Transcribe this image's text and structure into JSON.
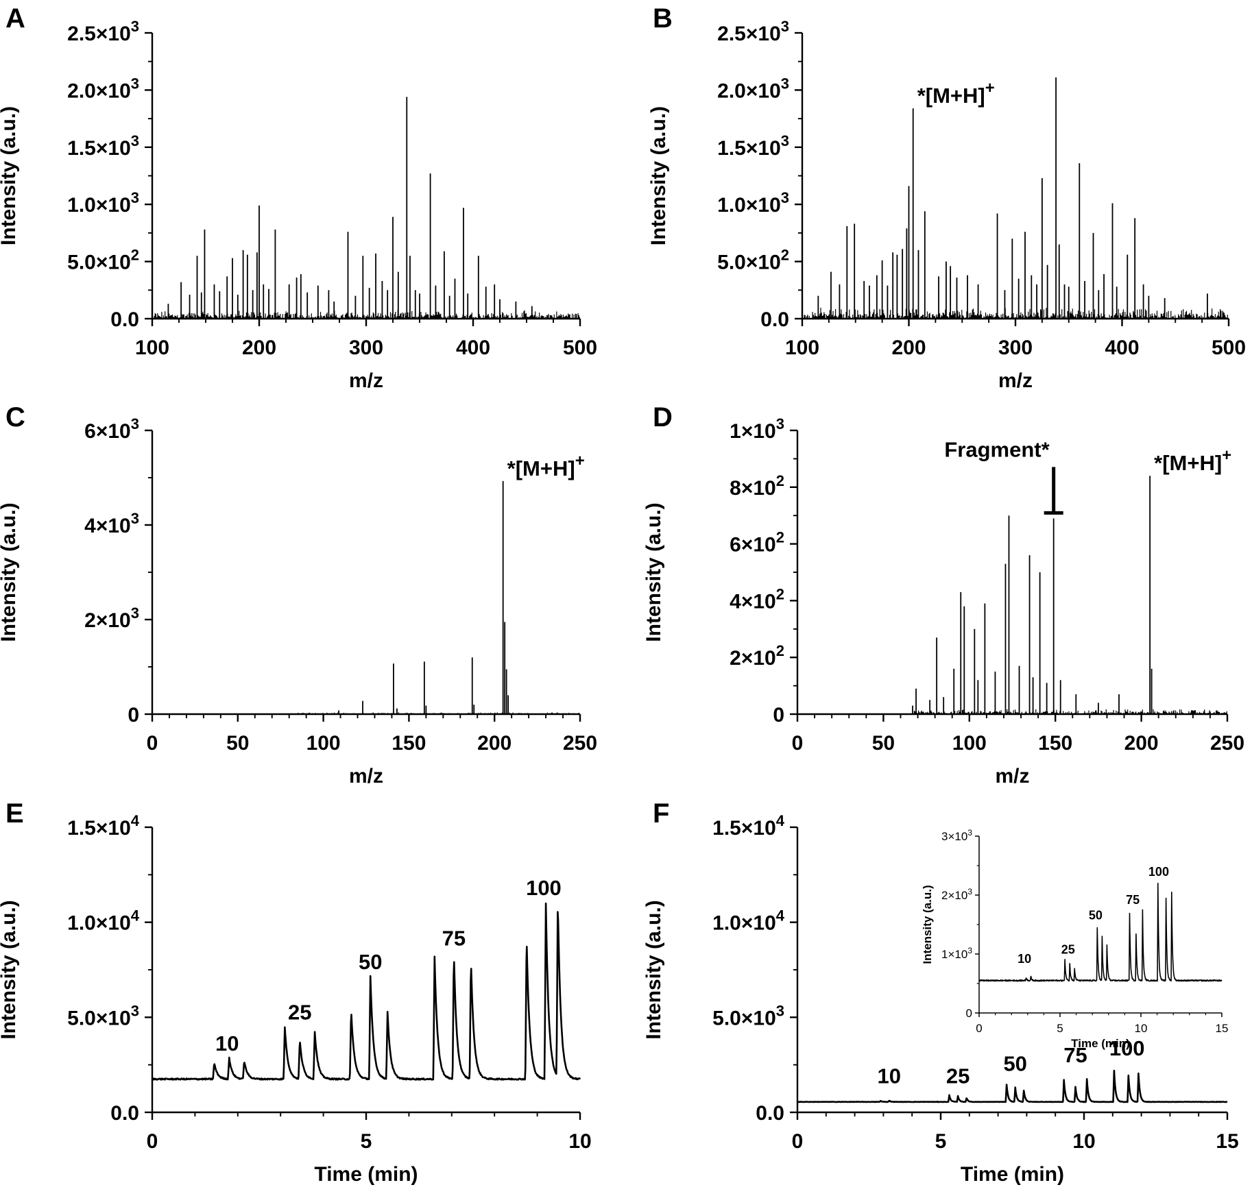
{
  "chart_data": [
    {
      "panel": "A",
      "type": "line",
      "xlabel": "m/z",
      "ylabel": "Intensity (a.u.)",
      "xlim": [
        100,
        500
      ],
      "ylim": [
        0,
        2500
      ],
      "xticks": [
        100,
        200,
        300,
        400,
        500
      ],
      "xtick_labels": [
        "100",
        "200",
        "300",
        "400",
        "500"
      ],
      "yticks": [
        0,
        500,
        1000,
        1500,
        2000,
        2500
      ],
      "ytick_labels": [
        {
          "mant": "0.0",
          "exp": ""
        },
        {
          "mant": "5.0×10",
          "exp": "2"
        },
        {
          "mant": "1.0×10",
          "exp": "3"
        },
        {
          "mant": "1.5×10",
          "exp": "3"
        },
        {
          "mant": "2.0×10",
          "exp": "3"
        },
        {
          "mant": "2.5×10",
          "exp": "3"
        }
      ],
      "peaks": [
        [
          115,
          130
        ],
        [
          127,
          320
        ],
        [
          135,
          210
        ],
        [
          142,
          550
        ],
        [
          146,
          230
        ],
        [
          149,
          780
        ],
        [
          158,
          300
        ],
        [
          163,
          240
        ],
        [
          170,
          370
        ],
        [
          175,
          530
        ],
        [
          180,
          210
        ],
        [
          185,
          600
        ],
        [
          189,
          560
        ],
        [
          194,
          250
        ],
        [
          198,
          580
        ],
        [
          200,
          990
        ],
        [
          204,
          300
        ],
        [
          209,
          260
        ],
        [
          215,
          780
        ],
        [
          228,
          300
        ],
        [
          235,
          360
        ],
        [
          239,
          390
        ],
        [
          245,
          230
        ],
        [
          255,
          290
        ],
        [
          265,
          250
        ],
        [
          270,
          150
        ],
        [
          283,
          760
        ],
        [
          290,
          200
        ],
        [
          297,
          550
        ],
        [
          303,
          270
        ],
        [
          309,
          570
        ],
        [
          315,
          330
        ],
        [
          320,
          250
        ],
        [
          325,
          890
        ],
        [
          330,
          410
        ],
        [
          338,
          1940
        ],
        [
          341,
          550
        ],
        [
          346,
          250
        ],
        [
          350,
          220
        ],
        [
          360,
          1270
        ],
        [
          365,
          290
        ],
        [
          373,
          590
        ],
        [
          378,
          200
        ],
        [
          383,
          350
        ],
        [
          391,
          970
        ],
        [
          395,
          220
        ],
        [
          405,
          550
        ],
        [
          412,
          280
        ],
        [
          420,
          300
        ],
        [
          425,
          170
        ],
        [
          440,
          150
        ],
        [
          455,
          110
        ]
      ],
      "noise": 60,
      "annotations": []
    },
    {
      "panel": "B",
      "type": "line",
      "xlabel": "m/z",
      "ylabel": "Intensity (a.u.)",
      "xlim": [
        100,
        500
      ],
      "ylim": [
        0,
        2500
      ],
      "xticks": [
        100,
        200,
        300,
        400,
        500
      ],
      "xtick_labels": [
        "100",
        "200",
        "300",
        "400",
        "500"
      ],
      "yticks": [
        0,
        500,
        1000,
        1500,
        2000,
        2500
      ],
      "ytick_labels": [
        {
          "mant": "0.0",
          "exp": ""
        },
        {
          "mant": "5.0×10",
          "exp": "2"
        },
        {
          "mant": "1.0×10",
          "exp": "3"
        },
        {
          "mant": "1.5×10",
          "exp": "3"
        },
        {
          "mant": "2.0×10",
          "exp": "3"
        },
        {
          "mant": "2.5×10",
          "exp": "3"
        }
      ],
      "peaks": [
        [
          115,
          200
        ],
        [
          127,
          410
        ],
        [
          135,
          300
        ],
        [
          142,
          810
        ],
        [
          149,
          830
        ],
        [
          158,
          330
        ],
        [
          163,
          290
        ],
        [
          170,
          380
        ],
        [
          175,
          510
        ],
        [
          180,
          290
        ],
        [
          185,
          580
        ],
        [
          189,
          560
        ],
        [
          194,
          610
        ],
        [
          198,
          790
        ],
        [
          200,
          1160
        ],
        [
          204,
          1840
        ],
        [
          209,
          600
        ],
        [
          215,
          940
        ],
        [
          228,
          370
        ],
        [
          235,
          500
        ],
        [
          239,
          460
        ],
        [
          245,
          360
        ],
        [
          255,
          380
        ],
        [
          265,
          300
        ],
        [
          283,
          920
        ],
        [
          290,
          250
        ],
        [
          297,
          700
        ],
        [
          303,
          350
        ],
        [
          309,
          760
        ],
        [
          315,
          380
        ],
        [
          320,
          300
        ],
        [
          325,
          1230
        ],
        [
          330,
          470
        ],
        [
          338,
          2110
        ],
        [
          341,
          650
        ],
        [
          346,
          300
        ],
        [
          350,
          280
        ],
        [
          360,
          1360
        ],
        [
          365,
          330
        ],
        [
          373,
          750
        ],
        [
          378,
          250
        ],
        [
          383,
          390
        ],
        [
          391,
          1010
        ],
        [
          395,
          280
        ],
        [
          405,
          560
        ],
        [
          412,
          880
        ],
        [
          420,
          300
        ],
        [
          425,
          200
        ],
        [
          440,
          180
        ],
        [
          480,
          220
        ]
      ],
      "noise": 80,
      "annotations": [
        {
          "text": "*[M+H]",
          "sup": "+",
          "x": 204,
          "y": 1840
        }
      ]
    },
    {
      "panel": "C",
      "type": "line",
      "xlabel": "m/z",
      "ylabel": "Intensity (a.u.)",
      "xlim": [
        0,
        250
      ],
      "ylim": [
        0,
        6000
      ],
      "xticks": [
        0,
        50,
        100,
        150,
        200,
        250
      ],
      "xtick_labels": [
        "0",
        "50",
        "100",
        "150",
        "200",
        "250"
      ],
      "yticks": [
        0,
        2000,
        4000,
        6000
      ],
      "ytick_labels": [
        {
          "mant": "0",
          "exp": ""
        },
        {
          "mant": "2×10",
          "exp": "3"
        },
        {
          "mant": "4×10",
          "exp": "3"
        },
        {
          "mant": "6×10",
          "exp": "3"
        }
      ],
      "peaks": [
        [
          109,
          80
        ],
        [
          123,
          280
        ],
        [
          141,
          1070
        ],
        [
          143,
          120
        ],
        [
          159,
          1110
        ],
        [
          160,
          180
        ],
        [
          187,
          1200
        ],
        [
          188,
          200
        ],
        [
          205,
          4930
        ],
        [
          206,
          1950
        ],
        [
          207,
          950
        ],
        [
          208,
          400
        ]
      ],
      "noise": 30,
      "annotations": [
        {
          "text": "*[M+H]",
          "sup": "+",
          "x": 205,
          "y": 4930
        }
      ]
    },
    {
      "panel": "D",
      "type": "line",
      "xlabel": "m/z",
      "ylabel": "Intensity (a.u.)",
      "xlim": [
        0,
        250
      ],
      "ylim": [
        0,
        1000
      ],
      "xticks": [
        0,
        50,
        100,
        150,
        200,
        250
      ],
      "xtick_labels": [
        "0",
        "50",
        "100",
        "150",
        "200",
        "250"
      ],
      "yticks": [
        0,
        200,
        400,
        600,
        800,
        1000
      ],
      "ytick_labels": [
        {
          "mant": "0",
          "exp": ""
        },
        {
          "mant": "2×10",
          "exp": "2"
        },
        {
          "mant": "4×10",
          "exp": "2"
        },
        {
          "mant": "6×10",
          "exp": "2"
        },
        {
          "mant": "8×10",
          "exp": "2"
        },
        {
          "mant": "1×10",
          "exp": "3"
        }
      ],
      "peaks": [
        [
          67,
          30
        ],
        [
          69,
          90
        ],
        [
          77,
          50
        ],
        [
          81,
          270
        ],
        [
          85,
          60
        ],
        [
          91,
          160
        ],
        [
          95,
          430
        ],
        [
          97,
          380
        ],
        [
          103,
          300
        ],
        [
          105,
          120
        ],
        [
          109,
          390
        ],
        [
          115,
          150
        ],
        [
          121,
          530
        ],
        [
          123,
          700
        ],
        [
          129,
          170
        ],
        [
          135,
          560
        ],
        [
          137,
          130
        ],
        [
          141,
          500
        ],
        [
          145,
          110
        ],
        [
          149,
          690
        ],
        [
          153,
          120
        ],
        [
          162,
          70
        ],
        [
          175,
          40
        ],
        [
          187,
          70
        ],
        [
          205,
          840
        ],
        [
          206,
          160
        ]
      ],
      "noise": 15,
      "annotations": [
        {
          "text": "*[M+H]",
          "sup": "+",
          "x": 205,
          "y": 840
        },
        {
          "text": "Fragment*",
          "sup": "",
          "x": 149,
          "y": 690
        }
      ]
    },
    {
      "panel": "E",
      "type": "line",
      "xlabel": "Time (min)",
      "ylabel": "Intensity (a.u.)",
      "xlim": [
        0,
        10
      ],
      "ylim": [
        0,
        15000
      ],
      "xticks": [
        0,
        5,
        10
      ],
      "xtick_labels": [
        "0",
        "5",
        "10"
      ],
      "yticks": [
        0,
        5000,
        10000,
        15000
      ],
      "ytick_labels": [
        {
          "mant": "0.0",
          "exp": ""
        },
        {
          "mant": "5.0×10",
          "exp": "3"
        },
        {
          "mant": "1.0×10",
          "exp": "4"
        },
        {
          "mant": "1.5×10",
          "exp": "4"
        }
      ],
      "baseline": 1750,
      "peaks": [
        [
          1.45,
          2600
        ],
        [
          1.8,
          2850
        ],
        [
          2.15,
          2700
        ],
        [
          3.1,
          4500
        ],
        [
          3.45,
          3800
        ],
        [
          3.8,
          4250
        ],
        [
          4.65,
          5400
        ],
        [
          5.1,
          7150
        ],
        [
          5.5,
          5250
        ],
        [
          6.6,
          8200
        ],
        [
          7.05,
          8400
        ],
        [
          7.45,
          8050
        ],
        [
          8.75,
          9300
        ],
        [
          9.2,
          11000
        ],
        [
          9.48,
          11050
        ]
      ],
      "annotations": [
        {
          "text": "10",
          "x": 1.75,
          "y": 2950
        },
        {
          "text": "25",
          "x": 3.45,
          "y": 4600
        },
        {
          "text": "50",
          "x": 5.1,
          "y": 7250
        },
        {
          "text": "75",
          "x": 7.05,
          "y": 8500
        },
        {
          "text": "100",
          "x": 9.15,
          "y": 11150
        }
      ]
    },
    {
      "panel": "F",
      "type": "line",
      "xlabel": "Time (min)",
      "ylabel": "Intensity (a.u.)",
      "xlim": [
        0,
        15
      ],
      "ylim": [
        0,
        15000
      ],
      "xticks": [
        0,
        5,
        10,
        15
      ],
      "xtick_labels": [
        "0",
        "5",
        "10",
        "15"
      ],
      "yticks": [
        0,
        5000,
        10000,
        15000
      ],
      "ytick_labels": [
        {
          "mant": "0.0",
          "exp": ""
        },
        {
          "mant": "5.0×10",
          "exp": "3"
        },
        {
          "mant": "1.0×10",
          "exp": "4"
        },
        {
          "mant": "1.5×10",
          "exp": "4"
        }
      ],
      "baseline": 550,
      "peaks": [
        [
          2.9,
          600
        ],
        [
          3.2,
          620
        ],
        [
          5.3,
          900
        ],
        [
          5.6,
          850
        ],
        [
          5.9,
          750
        ],
        [
          7.3,
          1450
        ],
        [
          7.6,
          1300
        ],
        [
          7.9,
          1150
        ],
        [
          9.3,
          1700
        ],
        [
          9.7,
          1350
        ],
        [
          10.1,
          1750
        ],
        [
          11.05,
          2200
        ],
        [
          11.55,
          1950
        ],
        [
          11.9,
          2050
        ]
      ],
      "annotations": [
        {
          "text": "10",
          "x": 3.2,
          "y": 1250
        },
        {
          "text": "25",
          "x": 5.6,
          "y": 1250
        },
        {
          "text": "50",
          "x": 7.6,
          "y": 1900
        },
        {
          "text": "75",
          "x": 9.7,
          "y": 2350
        },
        {
          "text": "100",
          "x": 11.5,
          "y": 2700
        }
      ],
      "inset": {
        "xlabel": "Time (min)",
        "ylabel": "Intensity (a.u.)",
        "xlim": [
          0,
          15
        ],
        "ylim": [
          0,
          3000
        ],
        "xticks": [
          0,
          5,
          10,
          15
        ],
        "xtick_labels": [
          "0",
          "5",
          "10",
          "15"
        ],
        "yticks": [
          0,
          1000,
          2000,
          3000
        ],
        "ytick_labels": [
          {
            "mant": "0",
            "exp": ""
          },
          {
            "mant": "1×10",
            "exp": "3"
          },
          {
            "mant": "2×10",
            "exp": "3"
          },
          {
            "mant": "3×10",
            "exp": "3"
          }
        ],
        "annotations": [
          {
            "text": "10",
            "x": 2.8,
            "y": 800
          },
          {
            "text": "25",
            "x": 5.5,
            "y": 960
          },
          {
            "text": "50",
            "x": 7.2,
            "y": 1540
          },
          {
            "text": "75",
            "x": 9.5,
            "y": 1800
          },
          {
            "text": "100",
            "x": 11.1,
            "y": 2280
          }
        ]
      }
    }
  ]
}
